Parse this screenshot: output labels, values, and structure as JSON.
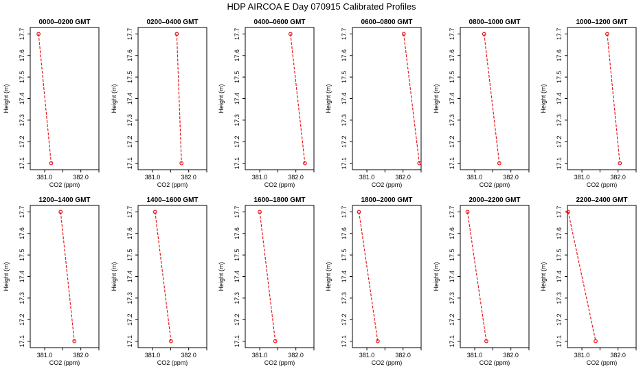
{
  "chart_data": {
    "type": "line",
    "title": "HDP  AIRCOA E  Day 070915  Calibrated Profiles",
    "xlabel": "CO2 (ppm)",
    "ylabel": "Height (m)",
    "xlim": [
      380.6,
      382.5
    ],
    "ylim": [
      17.07,
      17.73
    ],
    "xticks": [
      381.0,
      381.5,
      382.0,
      382.5
    ],
    "xtick_labels": [
      "381.0",
      "",
      "382.0",
      ""
    ],
    "yticks": [
      17.1,
      17.2,
      17.3,
      17.4,
      17.5,
      17.6,
      17.7
    ],
    "ytick_labels": [
      "17.1",
      "17.2",
      "17.3",
      "17.4",
      "17.5",
      "17.6",
      "17.7"
    ],
    "panels": [
      {
        "title": "0000–0200 GMT",
        "points": [
          {
            "x": 380.83,
            "y": 17.7
          },
          {
            "x": 381.18,
            "y": 17.1
          }
        ]
      },
      {
        "title": "0200–0400 GMT",
        "points": [
          {
            "x": 381.67,
            "y": 17.7
          },
          {
            "x": 381.8,
            "y": 17.1
          }
        ]
      },
      {
        "title": "0400–0600 GMT",
        "points": [
          {
            "x": 381.85,
            "y": 17.7
          },
          {
            "x": 382.25,
            "y": 17.1
          }
        ]
      },
      {
        "title": "0600–0800 GMT",
        "points": [
          {
            "x": 382.02,
            "y": 17.7
          },
          {
            "x": 382.45,
            "y": 17.1
          }
        ]
      },
      {
        "title": "0800–1000 GMT",
        "points": [
          {
            "x": 381.26,
            "y": 17.7
          },
          {
            "x": 381.68,
            "y": 17.1
          }
        ]
      },
      {
        "title": "1000–1200 GMT",
        "points": [
          {
            "x": 381.7,
            "y": 17.7
          },
          {
            "x": 382.05,
            "y": 17.1
          }
        ]
      },
      {
        "title": "1200–1400 GMT",
        "points": [
          {
            "x": 381.44,
            "y": 17.7
          },
          {
            "x": 381.82,
            "y": 17.1
          }
        ]
      },
      {
        "title": "1400–1600 GMT",
        "points": [
          {
            "x": 381.07,
            "y": 17.7
          },
          {
            "x": 381.51,
            "y": 17.1
          }
        ]
      },
      {
        "title": "1600–1800 GMT",
        "points": [
          {
            "x": 381.0,
            "y": 17.7
          },
          {
            "x": 381.43,
            "y": 17.1
          }
        ]
      },
      {
        "title": "1800–2000 GMT",
        "points": [
          {
            "x": 380.78,
            "y": 17.7
          },
          {
            "x": 381.3,
            "y": 17.1
          }
        ]
      },
      {
        "title": "2000–2200 GMT",
        "points": [
          {
            "x": 380.8,
            "y": 17.7
          },
          {
            "x": 381.32,
            "y": 17.1
          }
        ]
      },
      {
        "title": "2200–2400 GMT",
        "points": [
          {
            "x": 380.62,
            "y": 17.7
          },
          {
            "x": 381.38,
            "y": 17.1
          }
        ]
      }
    ]
  }
}
